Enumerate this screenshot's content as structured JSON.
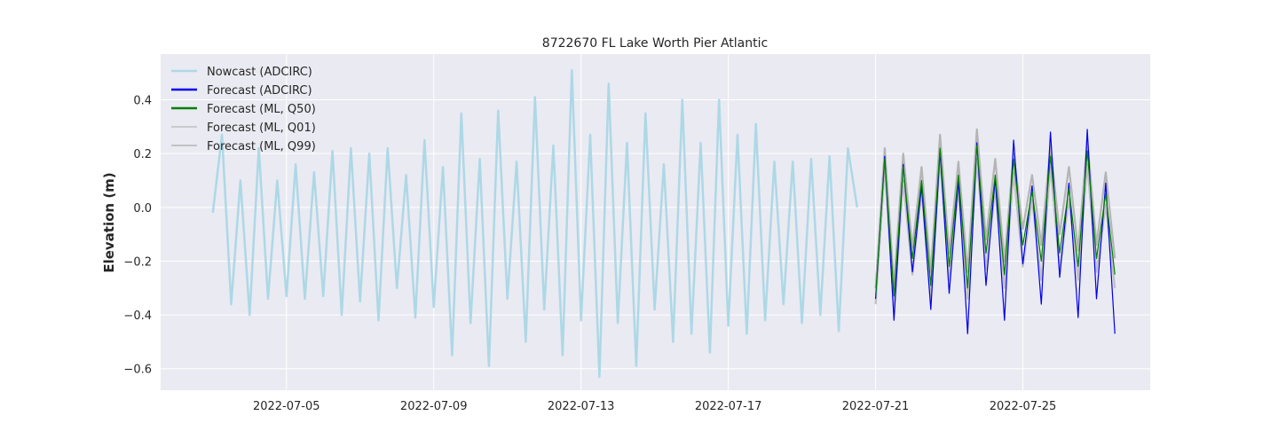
{
  "chart_data": {
    "type": "line",
    "title": "8722670 FL Lake Worth Pier Atlantic",
    "ylabel": "Elevation (m)",
    "xlabel": "",
    "xlim": [
      "2022-07-01T14:00",
      "2022-07-28T11:00"
    ],
    "ylim": [
      -0.68,
      0.57
    ],
    "x_ticks": [
      "2022-07-05",
      "2022-07-09",
      "2022-07-13",
      "2022-07-17",
      "2022-07-21",
      "2022-07-25"
    ],
    "y_ticks": [
      -0.6,
      -0.4,
      -0.2,
      0.0,
      0.2,
      0.4
    ],
    "y_tick_labels": [
      "−0.6",
      "−0.4",
      "−0.2",
      "0.0",
      "0.2",
      "0.4"
    ],
    "grid": true,
    "background": "#eaeaf2",
    "legend_position": "top-left",
    "nowcast_start": "2022-07-03T00:00",
    "forecast_start": "2022-07-21T00:00",
    "step_hours": 6,
    "series": [
      {
        "name": "Nowcast (ADCIRC)",
        "color": "#add8e6",
        "values": [
          -0.02,
          0.27,
          -0.36,
          0.1,
          -0.4,
          0.22,
          -0.34,
          0.1,
          -0.33,
          0.16,
          -0.34,
          0.13,
          -0.33,
          0.21,
          -0.4,
          0.22,
          -0.35,
          0.2,
          -0.42,
          0.22,
          -0.3,
          0.12,
          -0.41,
          0.25,
          -0.37,
          0.15,
          -0.55,
          0.35,
          -0.43,
          0.18,
          -0.59,
          0.36,
          -0.34,
          0.17,
          -0.5,
          0.41,
          -0.38,
          0.23,
          -0.55,
          0.51,
          -0.42,
          0.27,
          -0.63,
          0.46,
          -0.43,
          0.24,
          -0.59,
          0.35,
          -0.38,
          0.16,
          -0.5,
          0.4,
          -0.47,
          0.24,
          -0.54,
          0.4,
          -0.44,
          0.27,
          -0.47,
          0.31,
          -0.42,
          0.17,
          -0.36,
          0.17,
          -0.43,
          0.18,
          -0.4,
          0.19,
          -0.46,
          0.22,
          0.0
        ]
      },
      {
        "name": "Forecast (ADCIRC)",
        "color": "#0000ee",
        "values": [
          -0.34,
          0.19,
          -0.42,
          0.16,
          -0.24,
          0.08,
          -0.38,
          0.21,
          -0.32,
          0.1,
          -0.47,
          0.24,
          -0.29,
          0.11,
          -0.42,
          0.25,
          -0.21,
          0.08,
          -0.36,
          0.28,
          -0.26,
          0.09,
          -0.41,
          0.29,
          -0.34,
          0.09,
          -0.47
        ]
      },
      {
        "name": "Forecast (ML, Q50)",
        "color": "#008000",
        "values": [
          -0.33,
          0.18,
          -0.33,
          0.15,
          -0.19,
          0.1,
          -0.29,
          0.22,
          -0.22,
          0.12,
          -0.3,
          0.23,
          -0.17,
          0.12,
          -0.25,
          0.18,
          -0.14,
          0.06,
          -0.2,
          0.19,
          -0.17,
          0.07,
          -0.22,
          0.21,
          -0.19,
          0.05,
          -0.25
        ]
      },
      {
        "name": "Forecast (ML, Q01)",
        "color": "#c0c0c0",
        "values": [
          -0.36,
          0.15,
          -0.38,
          0.1,
          -0.25,
          0.06,
          -0.34,
          0.18,
          -0.27,
          0.07,
          -0.34,
          0.18,
          -0.23,
          0.07,
          -0.3,
          0.13,
          -0.22,
          0.03,
          -0.27,
          0.15,
          -0.23,
          0.03,
          -0.27,
          0.16,
          -0.24,
          0.01,
          -0.3
        ]
      },
      {
        "name": "Forecast (ML, Q99)",
        "color": "#b4b4b4",
        "values": [
          -0.3,
          0.22,
          -0.29,
          0.2,
          -0.15,
          0.15,
          -0.24,
          0.27,
          -0.17,
          0.17,
          -0.24,
          0.29,
          -0.12,
          0.18,
          -0.2,
          0.2,
          -0.08,
          0.12,
          -0.14,
          0.23,
          -0.1,
          0.15,
          -0.16,
          0.25,
          -0.14,
          0.13,
          -0.19
        ]
      }
    ]
  }
}
